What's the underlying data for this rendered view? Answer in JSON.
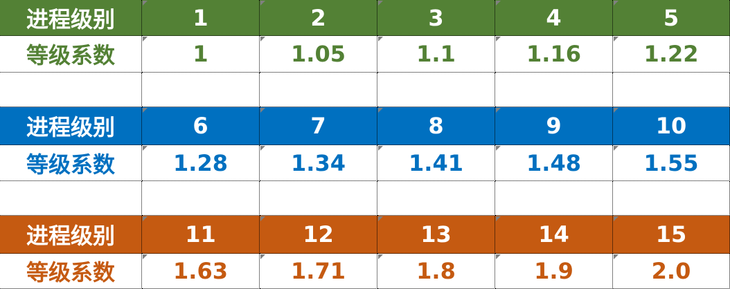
{
  "groups": [
    {
      "label": "进程级别",
      "levels": [
        "1",
        "2",
        "3",
        "4",
        "5"
      ],
      "coef_label": "等级系数",
      "coefficients": [
        "1",
        "1.05",
        "1.1",
        "1.16",
        "1.22"
      ],
      "color": "#538135"
    },
    {
      "label": "进程级别",
      "levels": [
        "6",
        "7",
        "8",
        "9",
        "10"
      ],
      "coef_label": "等级系数",
      "coefficients": [
        "1.28",
        "1.34",
        "1.41",
        "1.48",
        "1.55"
      ],
      "color": "#0070c0"
    },
    {
      "label": "进程级别",
      "levels": [
        "11",
        "12",
        "13",
        "14",
        "15"
      ],
      "coef_label": "等级系数",
      "coefficients": [
        "1.63",
        "1.71",
        "1.8",
        "1.9",
        "2.0"
      ],
      "color": "#c55a11"
    }
  ]
}
